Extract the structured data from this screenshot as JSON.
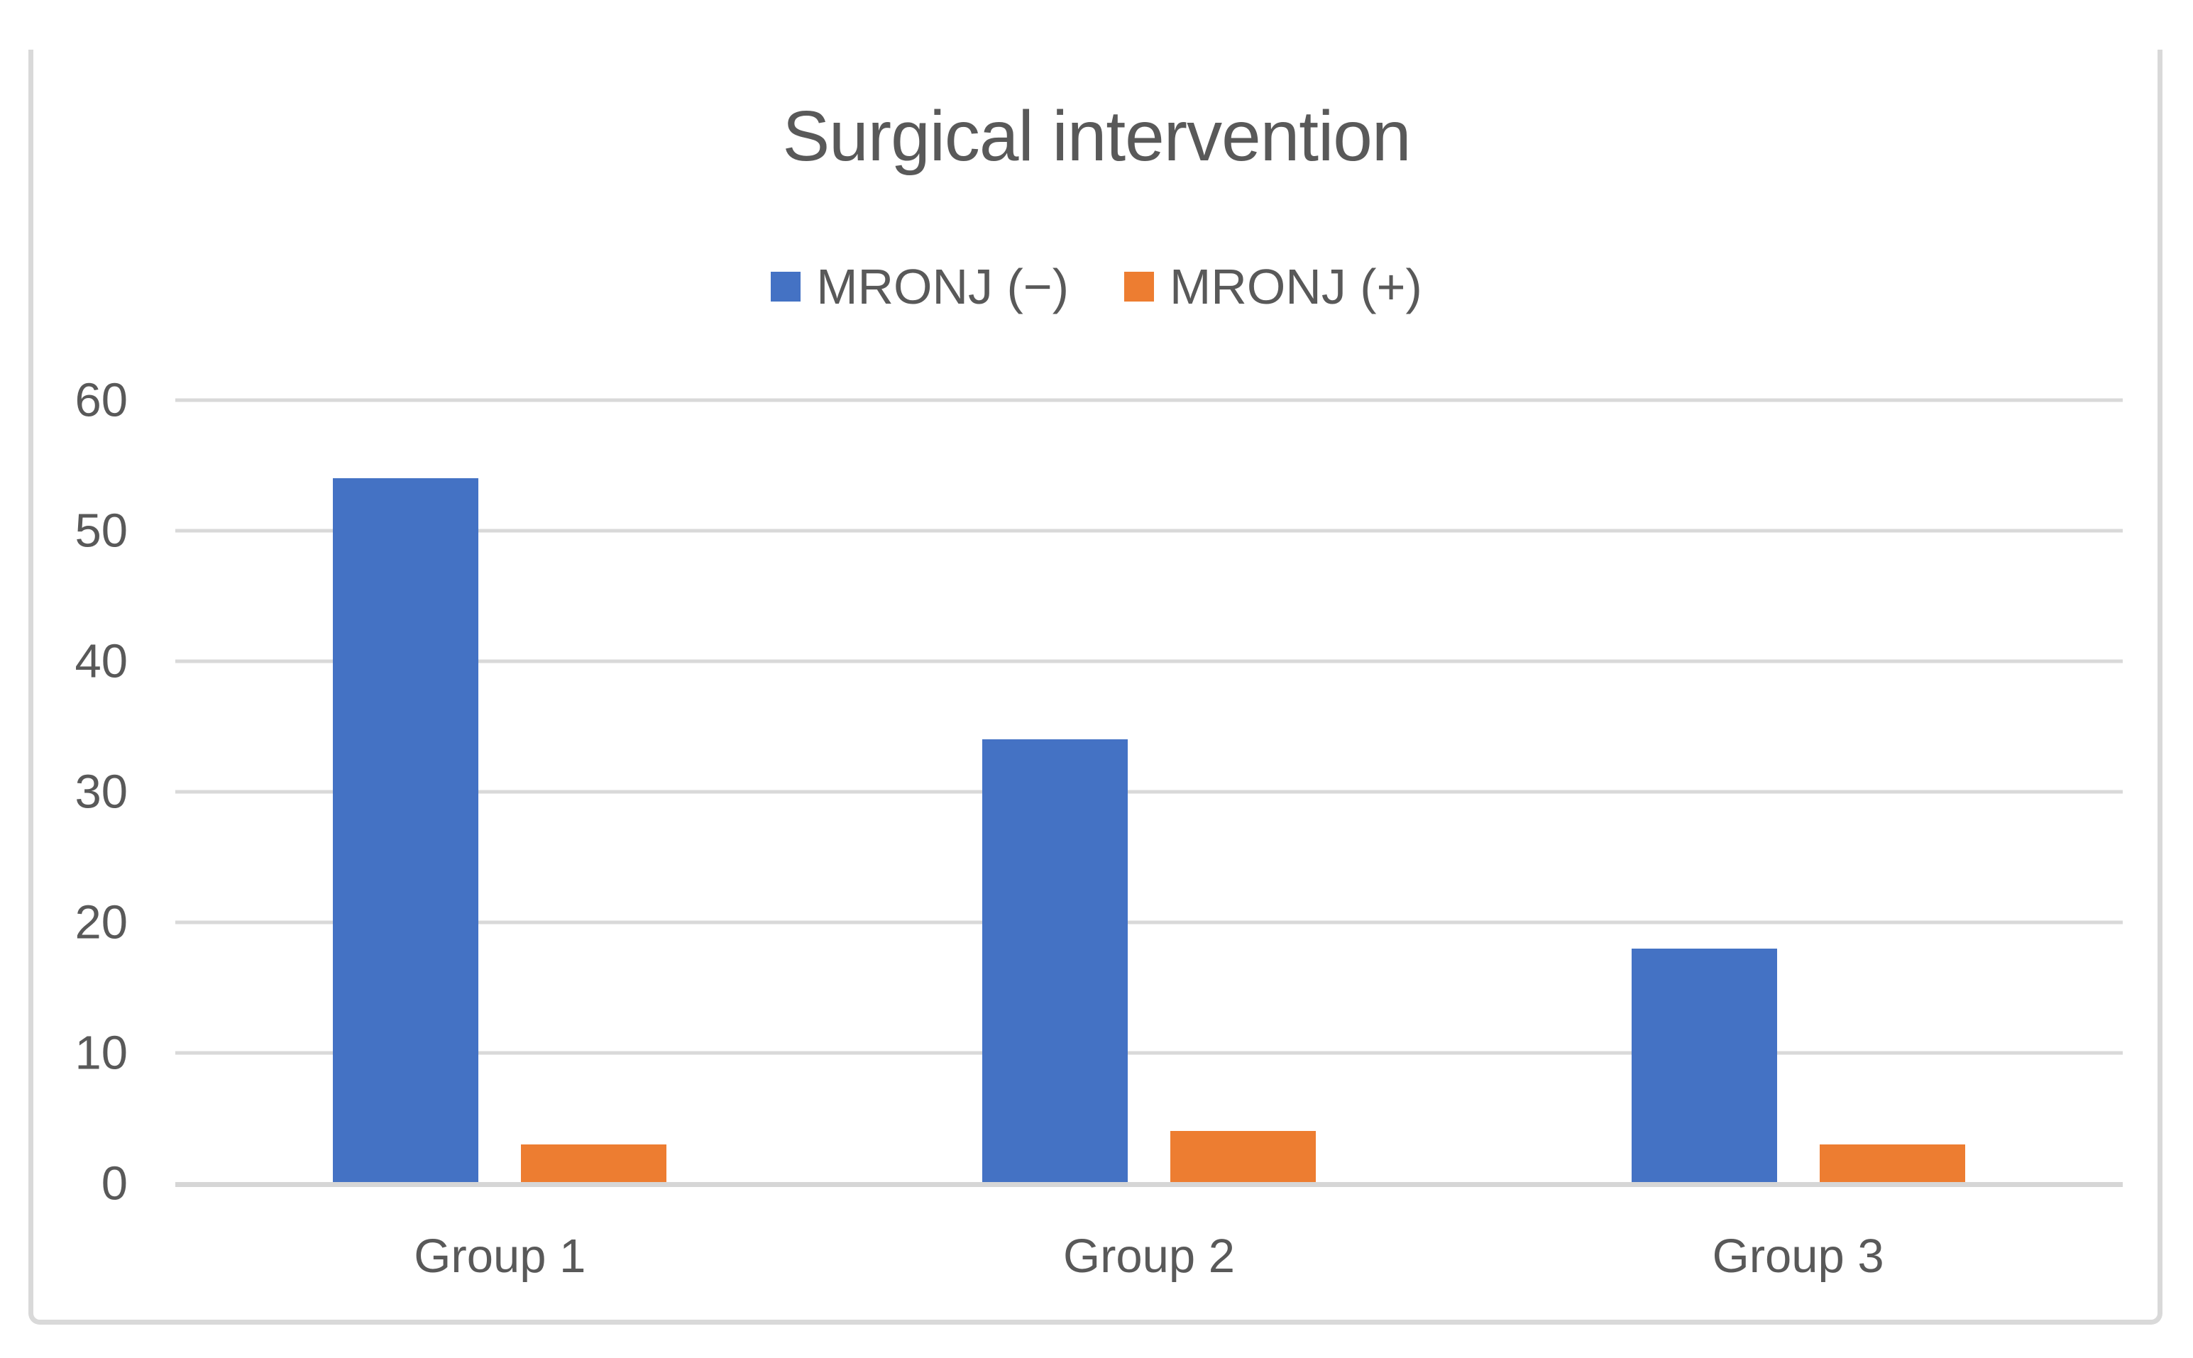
{
  "figure": {
    "title": "Surgical intervention"
  },
  "chart_data": {
    "type": "bar",
    "title": "Surgical intervention",
    "categories": [
      "Group 1",
      "Group 2",
      "Group 3"
    ],
    "series": [
      {
        "name": "MRONJ (−)",
        "color": "#4472C4",
        "values": [
          54,
          34,
          18
        ]
      },
      {
        "name": "MRONJ (+)",
        "color": "#ED7D31",
        "values": [
          3,
          4,
          3
        ]
      }
    ],
    "xlabel": "",
    "ylabel": "",
    "ylim": [
      0,
      60
    ],
    "yticks": [
      0,
      10,
      20,
      30,
      40,
      50,
      60
    ],
    "grid": true,
    "legend_position": "top-center"
  },
  "theme": {
    "background": "#FFFFFF",
    "text_color": "#595959",
    "gridline_color": "#D9D9D9",
    "axis_line_color": "#D6D6D6",
    "frame_border_color": "#D9D9D9"
  }
}
